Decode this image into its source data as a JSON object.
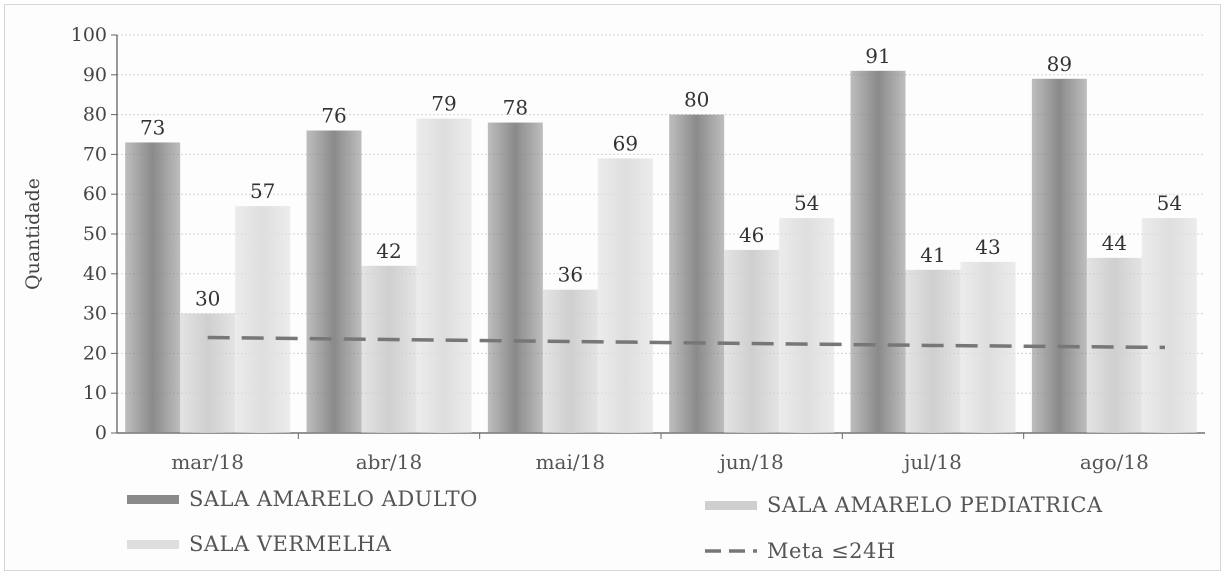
{
  "chart_data": {
    "type": "bar",
    "ylabel": "Quantidade",
    "ylim": [
      0,
      100
    ],
    "yticks": [
      0,
      10,
      20,
      30,
      40,
      50,
      60,
      70,
      80,
      90,
      100
    ],
    "categories": [
      "mar/18",
      "abr/18",
      "mai/18",
      "jun/18",
      "jul/18",
      "ago/18"
    ],
    "series": [
      {
        "name": "SALA AMARELO ADULTO",
        "values": [
          73,
          76,
          78,
          80,
          91,
          89
        ],
        "color": "#8a8a8a"
      },
      {
        "name": "SALA AMARELO PEDIATRICA",
        "values": [
          30,
          42,
          36,
          46,
          41,
          44
        ],
        "color": "#cfcfcf"
      },
      {
        "name": "SALA VERMELHA",
        "values": [
          57,
          79,
          69,
          54,
          43,
          54
        ],
        "color": "#dedede"
      }
    ],
    "line": {
      "name": "Meta ≤24H",
      "values": [
        24,
        23.5,
        23,
        22.5,
        22,
        21.5
      ],
      "color": "#777777",
      "style": "dashed"
    },
    "legend": "bottom",
    "grid": true
  }
}
